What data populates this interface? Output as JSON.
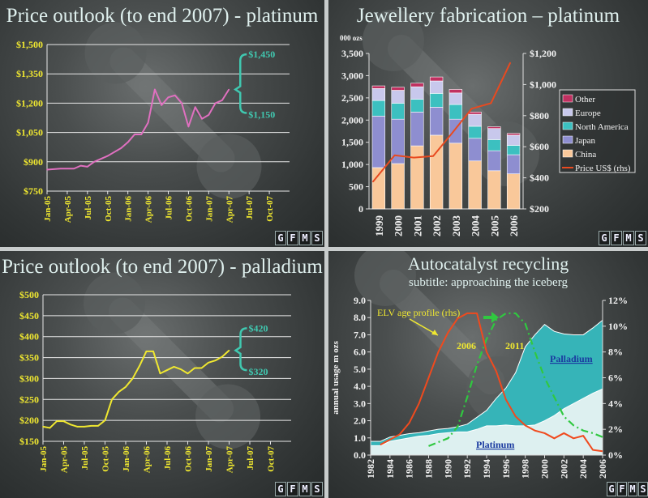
{
  "logo": [
    "G",
    "F",
    "M",
    "S"
  ],
  "colors": {
    "title": "#dff0ee",
    "yellow": "#f0e830",
    "teal": "#40c8b0",
    "pink": "#e070c0",
    "china": "#f9c89a",
    "japan": "#8e8ed0",
    "north_america": "#3cc0c0",
    "europe": "#c8c8ec",
    "other": "#c03060",
    "price": "#e84a20",
    "palladium_area": "#36b4b8",
    "platinum_area": "#ddf0f0",
    "elv": "#f04a1e",
    "green": "#30c840"
  },
  "chart_data": [
    {
      "type": "line",
      "title": "Price outlook (to end 2007) - platinum",
      "ylim": [
        750,
        1500
      ],
      "yticks": [
        "$750",
        "$900",
        "$1,050",
        "$1,200",
        "$1,350",
        "$1,500"
      ],
      "ytick_values": [
        750,
        900,
        1050,
        1200,
        1350,
        1500
      ],
      "xticks": [
        "Jan-05",
        "Apr-05",
        "Jul-05",
        "Oct-05",
        "Jan-06",
        "Apr-06",
        "Jul-06",
        "Oct-06",
        "Jan-07",
        "Apr-07",
        "Jul-07",
        "Oct-07"
      ],
      "xlim": [
        "Jan-05",
        "Jan-08"
      ],
      "grid": true,
      "x": [
        "2005-01",
        "2005-03",
        "2005-05",
        "2005-06",
        "2005-07",
        "2005-08",
        "2005-10",
        "2005-12",
        "2006-01",
        "2006-02",
        "2006-03",
        "2006-04",
        "2006-05",
        "2006-06",
        "2006-07",
        "2006-08",
        "2006-09",
        "2006-10",
        "2006-11",
        "2006-12",
        "2007-01",
        "2007-02",
        "2007-03",
        "2007-04"
      ],
      "values": [
        860,
        865,
        865,
        880,
        875,
        900,
        930,
        970,
        1000,
        1040,
        1040,
        1100,
        1270,
        1190,
        1230,
        1240,
        1200,
        1080,
        1180,
        1120,
        1140,
        1200,
        1215,
        1270
      ],
      "outlook": {
        "high": 1450,
        "low": 1150,
        "high_label": "$1,450",
        "low_label": "$1,150"
      }
    },
    {
      "type": "bar",
      "title": "Jewellery fabrication – platinum",
      "ylabel": "000 ozs",
      "ylim": [
        0,
        3500
      ],
      "yticks": [
        "0",
        "500",
        "1,000",
        "1,500",
        "2,000",
        "2,500",
        "3,000",
        "3,500"
      ],
      "y2lim": [
        200,
        1200
      ],
      "y2ticks": [
        "$200",
        "$400",
        "$600",
        "$800",
        "$1,000",
        "$1,200"
      ],
      "categories": [
        "1999",
        "2000",
        "2001",
        "2002",
        "2003",
        "2004",
        "2005",
        "2006"
      ],
      "stacked": true,
      "legend": "right",
      "series": [
        {
          "name": "China",
          "values": [
            930,
            1020,
            1420,
            1660,
            1480,
            1080,
            860,
            790
          ]
        },
        {
          "name": "Japan",
          "values": [
            1160,
            1000,
            760,
            630,
            540,
            510,
            450,
            430
          ]
        },
        {
          "name": "North America",
          "values": [
            350,
            360,
            290,
            310,
            330,
            270,
            250,
            210
          ]
        },
        {
          "name": "Europe",
          "values": [
            270,
            290,
            280,
            280,
            260,
            270,
            250,
            230
          ]
        },
        {
          "name": "Other",
          "values": [
            60,
            70,
            80,
            90,
            80,
            50,
            40,
            40
          ]
        }
      ],
      "line": {
        "name": "Price US$ (rhs)",
        "axis": "right",
        "values": [
          375,
          545,
          530,
          540,
          690,
          845,
          880,
          1140
        ]
      }
    },
    {
      "type": "line",
      "title": "Price outlook (to end 2007) - palladium",
      "ylim": [
        150,
        500
      ],
      "yticks": [
        "$150",
        "$200",
        "$250",
        "$300",
        "$350",
        "$400",
        "$450",
        "$500"
      ],
      "ytick_values": [
        150,
        200,
        250,
        300,
        350,
        400,
        450,
        500
      ],
      "xticks": [
        "Jan-05",
        "Apr-05",
        "Jul-05",
        "Oct-05",
        "Jan-06",
        "Apr-06",
        "Jul-06",
        "Oct-06",
        "Jan-07",
        "Apr-07",
        "Jul-07",
        "Oct-07"
      ],
      "xlim": [
        "Jan-05",
        "Jan-08"
      ],
      "grid": true,
      "x": [
        "2005-01",
        "2005-02",
        "2005-03",
        "2005-04",
        "2005-05",
        "2005-06",
        "2005-07",
        "2005-08",
        "2005-09",
        "2005-10",
        "2005-11",
        "2005-12",
        "2006-01",
        "2006-02",
        "2006-03",
        "2006-04",
        "2006-05",
        "2006-06",
        "2006-07",
        "2006-08",
        "2006-09",
        "2006-10",
        "2006-11",
        "2006-12",
        "2007-01",
        "2007-02",
        "2007-03",
        "2007-04"
      ],
      "values": [
        185,
        182,
        198,
        198,
        190,
        185,
        185,
        187,
        187,
        200,
        250,
        268,
        280,
        300,
        330,
        365,
        365,
        312,
        320,
        328,
        322,
        312,
        325,
        325,
        338,
        343,
        352,
        367
      ],
      "outlook": {
        "high": 420,
        "low": 320,
        "high_label": "$420",
        "low_label": "$320"
      }
    },
    {
      "type": "area",
      "title": "Autocatalyst recycling",
      "subtitle": "subtitle: approaching the iceberg",
      "ylabel": "annual usage m ozs",
      "ylim": [
        0,
        9
      ],
      "yticks": [
        "0.0",
        "1.0",
        "2.0",
        "3.0",
        "4.0",
        "5.0",
        "6.0",
        "7.0",
        "8.0",
        "9.0"
      ],
      "y2lim": [
        0,
        12
      ],
      "y2ticks": [
        "0%",
        "2%",
        "4%",
        "6%",
        "8%",
        "10%",
        "12%"
      ],
      "xticks": [
        "1982",
        "1984",
        "1986",
        "1988",
        "1990",
        "1992",
        "1994",
        "1996",
        "1998",
        "2000",
        "2002",
        "2004",
        "2006"
      ],
      "x": [
        1982,
        1983,
        1984,
        1985,
        1986,
        1987,
        1988,
        1989,
        1990,
        1991,
        1992,
        1993,
        1994,
        1995,
        1996,
        1997,
        1998,
        1999,
        2000,
        2001,
        2002,
        2003,
        2004,
        2005,
        2006
      ],
      "series": [
        {
          "name": "Platinum",
          "values": [
            0.55,
            0.55,
            0.8,
            0.9,
            1.0,
            1.1,
            1.15,
            1.25,
            1.3,
            1.35,
            1.35,
            1.5,
            1.7,
            1.7,
            1.75,
            1.7,
            1.7,
            1.75,
            2.0,
            2.3,
            2.7,
            3.0,
            3.3,
            3.6,
            3.85
          ]
        },
        {
          "name": "Palladium",
          "stacked_top": [
            0.8,
            0.8,
            1.05,
            1.15,
            1.25,
            1.3,
            1.4,
            1.5,
            1.55,
            1.65,
            1.8,
            2.2,
            2.6,
            3.3,
            3.9,
            4.8,
            6.3,
            7.0,
            7.6,
            7.2,
            7.05,
            7.0,
            7.0,
            7.4,
            7.85
          ]
        }
      ],
      "lines": [
        {
          "name": "ELV age profile (rhs)",
          "axis": "right",
          "label": "2006",
          "x": [
            1983,
            1984,
            1985,
            1986,
            1987,
            1988,
            1989,
            1990,
            1991,
            1992,
            1993,
            1994,
            1995,
            1996,
            1997,
            1998,
            1999,
            2000,
            2001,
            2002,
            2003,
            2004,
            2005,
            2006
          ],
          "values": [
            0.8,
            1.2,
            1.6,
            2.5,
            4.0,
            6.0,
            8.0,
            9.5,
            10.6,
            11.0,
            11.0,
            8.0,
            6.5,
            4.3,
            3.0,
            2.3,
            1.9,
            1.7,
            1.3,
            1.7,
            1.3,
            1.5,
            0.4,
            0.3
          ]
        },
        {
          "axis": "right",
          "label": "2011",
          "dashed": true,
          "x": [
            1988,
            1989,
            1990,
            1991,
            1992,
            1993,
            1994,
            1995,
            1996,
            1997,
            1998,
            1999,
            2000,
            2001,
            2002,
            2003,
            2004,
            2005,
            2006
          ],
          "values": [
            0.7,
            1.0,
            1.3,
            2.2,
            4.5,
            7.0,
            9.0,
            10.5,
            11.0,
            11.0,
            10.2,
            8.0,
            6.0,
            4.5,
            3.0,
            2.3,
            1.9,
            1.7,
            1.4
          ]
        }
      ]
    }
  ]
}
